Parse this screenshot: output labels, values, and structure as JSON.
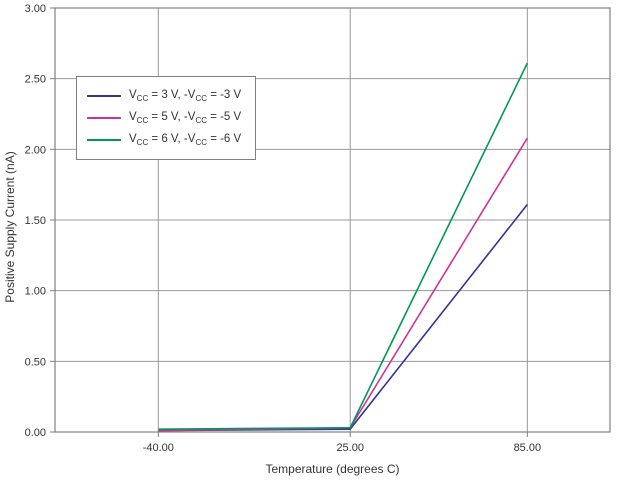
{
  "chart_data": {
    "type": "line",
    "x": [
      -40,
      25,
      85
    ],
    "x_tick_labels": [
      "-40.00",
      "25.00",
      "85.00"
    ],
    "xlim": [
      -75,
      113
    ],
    "ylim": [
      0,
      3
    ],
    "y_ticks": [
      0,
      0.5,
      1,
      1.5,
      2,
      2.5,
      3
    ],
    "y_tick_labels": [
      "0.00",
      "0.50",
      "1.00",
      "1.50",
      "2.00",
      "2.50",
      "3.00"
    ],
    "xlabel": "Temperature (degrees C)",
    "ylabel": "Positive Supply Current (nA)",
    "grid": true,
    "legend_position": "upper-left",
    "series": [
      {
        "name": "Vcc = 3 V, -Vcc = -3 V",
        "color": "#333399",
        "values": [
          0.01,
          0.02,
          1.61
        ],
        "label_parts": [
          {
            "t": "V"
          },
          {
            "t": "CC",
            "sub": true
          },
          {
            "t": " = 3 V, -V"
          },
          {
            "t": "CC",
            "sub": true
          },
          {
            "t": " = -3 V"
          }
        ]
      },
      {
        "name": "Vcc = 5 V, -Vcc = -5 V",
        "color": "#cc3399",
        "values": [
          0.01,
          0.03,
          2.08
        ],
        "label_parts": [
          {
            "t": "V"
          },
          {
            "t": "CC",
            "sub": true
          },
          {
            "t": " = 5 V, -V"
          },
          {
            "t": "CC",
            "sub": true
          },
          {
            "t": " = -5 V"
          }
        ]
      },
      {
        "name": "Vcc = 6 V, -Vcc = -6 V",
        "color": "#009955",
        "values": [
          0.02,
          0.03,
          2.61
        ],
        "label_parts": [
          {
            "t": "V"
          },
          {
            "t": "CC",
            "sub": true
          },
          {
            "t": " = 6 V, -V"
          },
          {
            "t": "CC",
            "sub": true
          },
          {
            "t": " = -6 V"
          }
        ]
      }
    ],
    "colors": {
      "grid": "#999999",
      "frame": "#808080",
      "text": "#333333",
      "background": "#ffffff"
    }
  }
}
